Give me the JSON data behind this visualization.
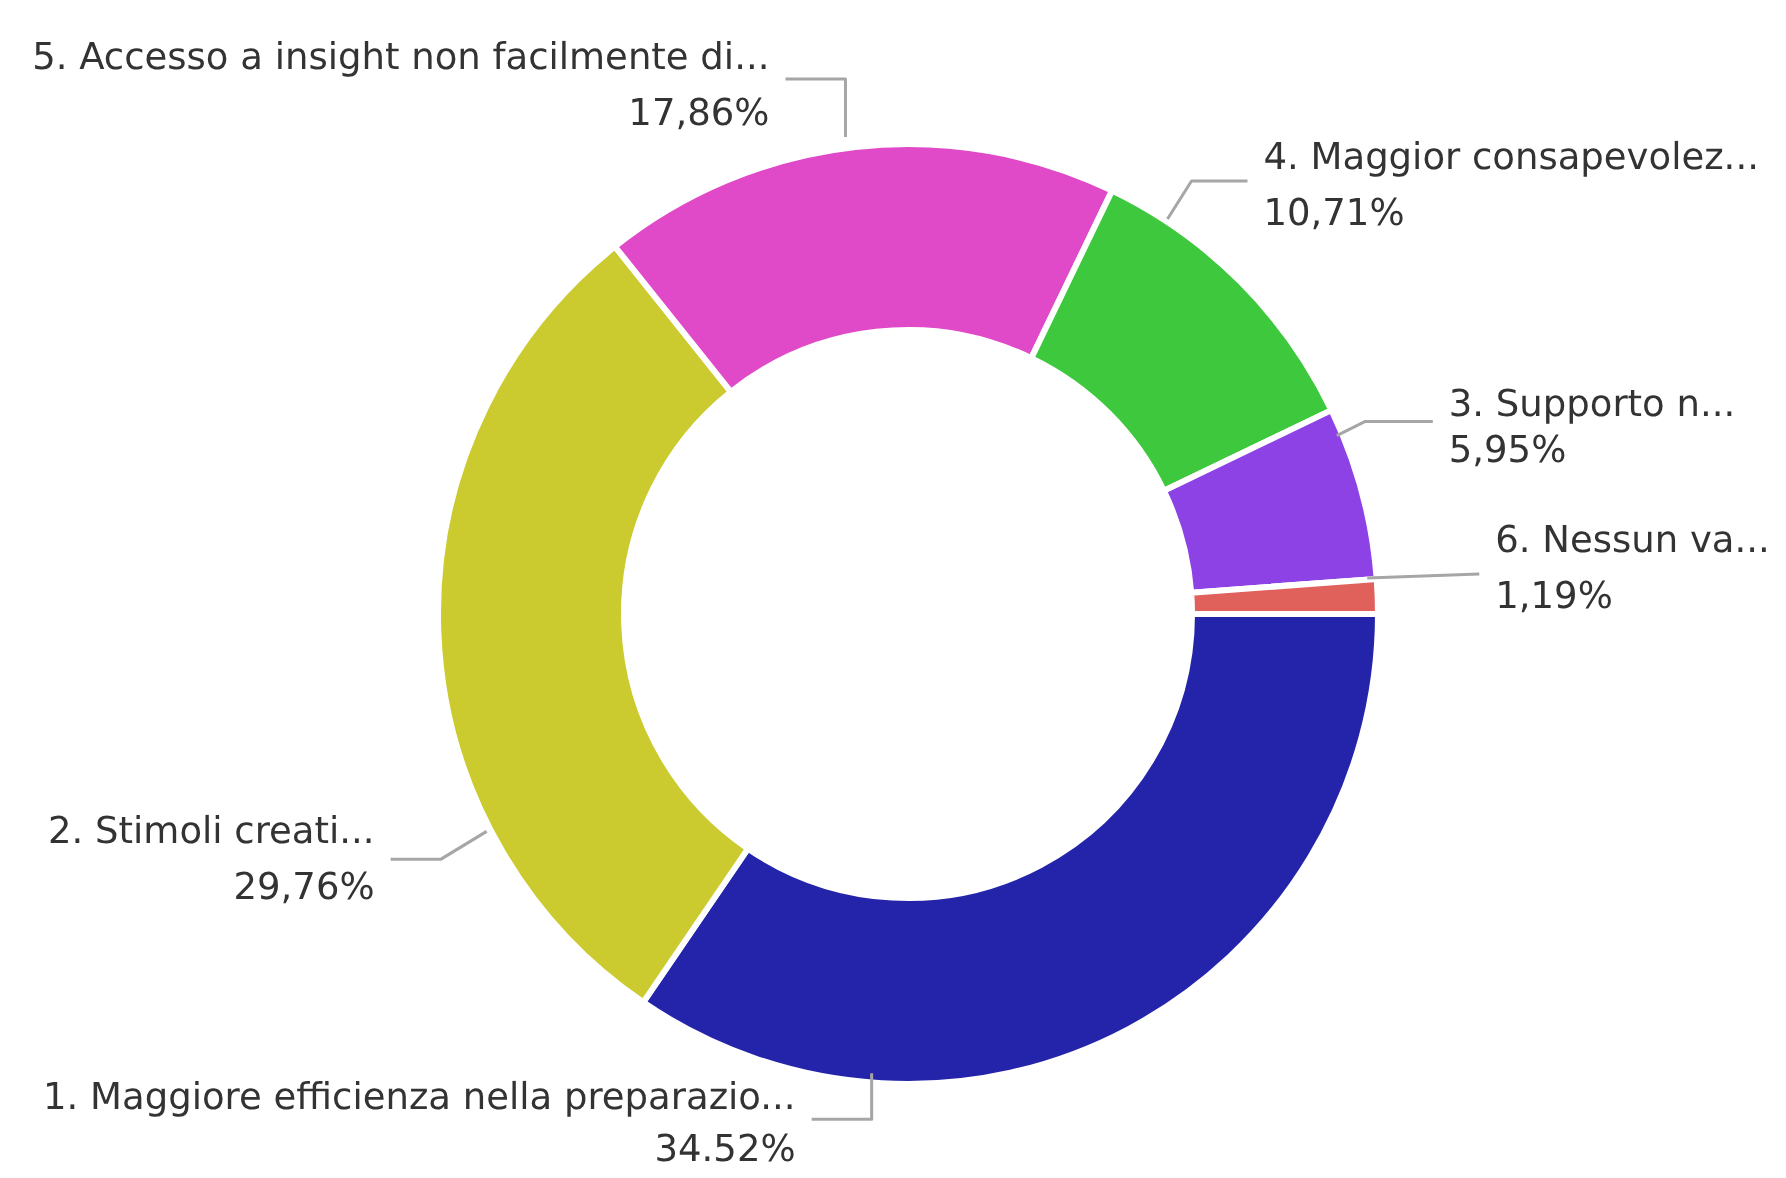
{
  "chart_data": {
    "type": "donut",
    "categories": [
      "1. Maggiore efficienza nella preparazio...",
      "2. Stimoli creati...",
      "5. Accesso a insight non facilmente di...",
      "4. Maggior consapevolez...",
      "3. Supporto n...",
      "6. Nessun va..."
    ],
    "values": [
      34.52,
      29.76,
      17.86,
      10.71,
      5.95,
      1.19
    ],
    "value_labels": [
      "34.52%",
      "29,76%",
      "17,86%",
      "10,71%",
      "5,95%",
      "1,19%"
    ],
    "colors": [
      "#2424aa",
      "#cbcb30",
      "#e04ac8",
      "#3ec83e",
      "#8c42e4",
      "#e0605c"
    ]
  }
}
